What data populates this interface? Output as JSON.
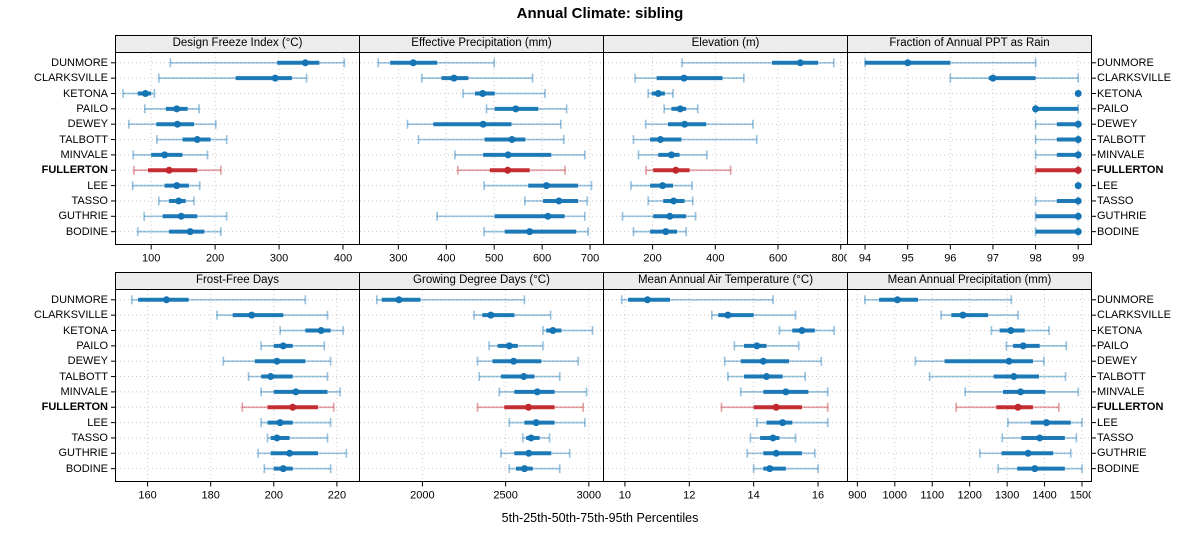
{
  "title": "Annual Climate: sibling",
  "caption": "5th-25th-50th-75th-95th Percentiles",
  "percentile_labels": [
    "5th",
    "25th",
    "50th",
    "75th",
    "95th"
  ],
  "sites": [
    "DUNMORE",
    "CLARKSVILLE",
    "KETONA",
    "PAILO",
    "DEWEY",
    "TALBOTT",
    "MINVALE",
    "FULLERTON",
    "LEE",
    "TASSO",
    "GUTHRIE",
    "BODINE"
  ],
  "highlight_site": "FULLERTON",
  "colors": {
    "series": "#1574B4",
    "highlight": "#C1272D",
    "grid": "#C9C9C9",
    "strip_bg": "#ECECEC",
    "border": "#000000",
    "background": "#FFFFFF"
  },
  "layout": {
    "grid": "2x4",
    "legend": "none",
    "gridlines": "dotted"
  },
  "chart_data": [
    {
      "type": "dot-whisker-percentiles",
      "title": "Design Freeze Index (°C)",
      "xlim": [
        45,
        425
      ],
      "ticks": [
        100,
        200,
        300,
        400
      ],
      "values": [
        [
          130,
          297,
          341,
          363,
          402
        ],
        [
          112,
          232,
          294,
          320,
          343
        ],
        [
          56,
          79,
          91,
          100,
          105
        ],
        [
          90,
          123,
          140,
          157,
          175
        ],
        [
          65,
          108,
          141,
          167,
          201
        ],
        [
          109,
          149,
          172,
          193,
          218
        ],
        [
          72,
          100,
          121,
          149,
          188
        ],
        [
          73,
          95,
          128,
          172,
          209
        ],
        [
          71,
          121,
          140,
          159,
          176
        ],
        [
          112,
          128,
          143,
          154,
          167
        ],
        [
          89,
          118,
          147,
          172,
          218
        ],
        [
          79,
          128,
          161,
          183,
          209
        ]
      ]
    },
    {
      "type": "dot-whisker-percentiles",
      "title": "Effective Precipitation (mm)",
      "xlim": [
        220,
        727
      ],
      "ticks": [
        300,
        400,
        500,
        600,
        700
      ],
      "values": [
        [
          258,
          283,
          331,
          381,
          500
        ],
        [
          349,
          390,
          416,
          446,
          580
        ],
        [
          435,
          460,
          476,
          501,
          606
        ],
        [
          484,
          501,
          545,
          592,
          651
        ],
        [
          319,
          373,
          477,
          536,
          639
        ],
        [
          342,
          480,
          537,
          565,
          645
        ],
        [
          418,
          477,
          529,
          619,
          689
        ],
        [
          424,
          491,
          528,
          574,
          648
        ],
        [
          479,
          571,
          609,
          675,
          703
        ],
        [
          564,
          602,
          635,
          675,
          694
        ],
        [
          381,
          501,
          612,
          647,
          689
        ],
        [
          479,
          522,
          574,
          671,
          696
        ]
      ]
    },
    {
      "type": "dot-whisker-percentiles",
      "title": "Elevation (m)",
      "xlim": [
        45,
        820
      ],
      "ticks": [
        200,
        400,
        600,
        800
      ],
      "values": [
        [
          294,
          581,
          671,
          728,
          778
        ],
        [
          144,
          213,
          300,
          423,
          491
        ],
        [
          186,
          197,
          218,
          239,
          265
        ],
        [
          237,
          260,
          288,
          307,
          344
        ],
        [
          178,
          249,
          302,
          371,
          520
        ],
        [
          139,
          192,
          225,
          292,
          532
        ],
        [
          155,
          218,
          260,
          286,
          373
        ],
        [
          179,
          202,
          274,
          318,
          449
        ],
        [
          131,
          192,
          232,
          265,
          326
        ],
        [
          186,
          234,
          267,
          302,
          328
        ],
        [
          104,
          202,
          255,
          307,
          337
        ],
        [
          139,
          192,
          242,
          278,
          307
        ]
      ]
    },
    {
      "type": "dot-whisker-percentiles",
      "title": "Fraction of Annual PPT as Rain",
      "xlim": [
        93.6,
        99.3
      ],
      "ticks": [
        94,
        95,
        96,
        97,
        98,
        99
      ],
      "values": [
        [
          94,
          94,
          95,
          96,
          98
        ],
        [
          96,
          96.9,
          97,
          98,
          99
        ],
        [
          99,
          99,
          99,
          99,
          99
        ],
        [
          98,
          98,
          98,
          99,
          99
        ],
        [
          98,
          98.5,
          99,
          99,
          99
        ],
        [
          98,
          98.5,
          99,
          99,
          99
        ],
        [
          98,
          98.5,
          99,
          99,
          99
        ],
        [
          98,
          98,
          99,
          99,
          99
        ],
        [
          99,
          99,
          99,
          99,
          99
        ],
        [
          98,
          98.5,
          99,
          99,
          99
        ],
        [
          98,
          98,
          99,
          99,
          99
        ],
        [
          98,
          98,
          99,
          99,
          99
        ]
      ]
    },
    {
      "type": "dot-whisker-percentiles",
      "title": "Frost-Free Days",
      "xlim": [
        150,
        227
      ],
      "ticks": [
        160,
        180,
        200,
        220
      ],
      "values": [
        [
          155,
          157,
          166,
          173,
          210
        ],
        [
          182,
          187,
          193,
          203,
          217
        ],
        [
          202,
          210,
          215,
          218,
          222
        ],
        [
          196,
          200,
          203,
          206,
          216
        ],
        [
          184,
          194,
          201,
          210,
          218
        ],
        [
          192,
          196,
          199,
          206,
          217
        ],
        [
          196,
          200,
          207,
          217,
          221
        ],
        [
          190,
          198,
          206,
          214,
          219
        ],
        [
          196,
          198,
          202,
          206,
          218
        ],
        [
          198,
          199,
          201,
          205,
          217
        ],
        [
          195,
          199,
          205,
          214,
          223
        ],
        [
          197,
          200,
          203,
          206,
          218
        ]
      ]
    },
    {
      "type": "dot-whisker-percentiles",
      "title": "Growing Degree Days (°C)",
      "xlim": [
        1625,
        3085
      ],
      "ticks": [
        2000,
        2500,
        3000
      ],
      "values": [
        [
          1726,
          1756,
          1859,
          1988,
          2613
        ],
        [
          2310,
          2360,
          2411,
          2553,
          2770
        ],
        [
          2724,
          2744,
          2784,
          2835,
          3022
        ],
        [
          2401,
          2452,
          2522,
          2573,
          2724
        ],
        [
          2331,
          2421,
          2548,
          2714,
          2936
        ],
        [
          2341,
          2472,
          2609,
          2673,
          2825
        ],
        [
          2462,
          2552,
          2690,
          2794,
          2986
        ],
        [
          2331,
          2492,
          2637,
          2794,
          2966
        ],
        [
          2522,
          2613,
          2683,
          2794,
          2976
        ],
        [
          2603,
          2623,
          2653,
          2704,
          2764
        ],
        [
          2472,
          2552,
          2639,
          2774,
          2885
        ],
        [
          2522,
          2562,
          2613,
          2663,
          2825
        ]
      ]
    },
    {
      "type": "dot-whisker-percentiles",
      "title": "Mean Annual Air Temperature (°C)",
      "xlim": [
        9.35,
        16.9
      ],
      "ticks": [
        10,
        12,
        14,
        16
      ],
      "values": [
        [
          9.9,
          10.1,
          10.7,
          11.4,
          14.6
        ],
        [
          12.7,
          12.9,
          13.2,
          14.0,
          15.3
        ],
        [
          14.8,
          15.2,
          15.5,
          15.9,
          16.5
        ],
        [
          13.4,
          13.7,
          14.1,
          14.4,
          15.4
        ],
        [
          13.1,
          13.6,
          14.3,
          15.1,
          16.1
        ],
        [
          13.2,
          13.7,
          14.4,
          14.9,
          15.6
        ],
        [
          13.6,
          14.3,
          15.0,
          15.7,
          16.3
        ],
        [
          13.0,
          14.0,
          14.7,
          15.5,
          16.3
        ],
        [
          14.1,
          14.4,
          14.9,
          15.2,
          16.3
        ],
        [
          13.9,
          14.2,
          14.6,
          14.8,
          15.3
        ],
        [
          13.8,
          14.3,
          14.7,
          15.5,
          15.9
        ],
        [
          14.0,
          14.3,
          14.5,
          15.0,
          16.0
        ]
      ]
    },
    {
      "type": "dot-whisker-percentiles",
      "title": "Mean Annual Precipitation (mm)",
      "xlim": [
        875,
        1524
      ],
      "ticks": [
        900,
        1000,
        1100,
        1200,
        1300,
        1400,
        1500
      ],
      "values": [
        [
          920,
          958,
          1007,
          1062,
          1311
        ],
        [
          1124,
          1151,
          1182,
          1249,
          1329
        ],
        [
          1258,
          1280,
          1310,
          1347,
          1412
        ],
        [
          1298,
          1316,
          1343,
          1387,
          1458
        ],
        [
          1055,
          1133,
          1305,
          1369,
          1398
        ],
        [
          1093,
          1264,
          1318,
          1385,
          1456
        ],
        [
          1188,
          1289,
          1336,
          1402,
          1490
        ],
        [
          1164,
          1271,
          1329,
          1369,
          1438
        ],
        [
          1302,
          1363,
          1405,
          1470,
          1500
        ],
        [
          1287,
          1338,
          1387,
          1454,
          1485
        ],
        [
          1227,
          1285,
          1356,
          1423,
          1470
        ],
        [
          1276,
          1327,
          1374,
          1454,
          1500
        ]
      ]
    }
  ]
}
